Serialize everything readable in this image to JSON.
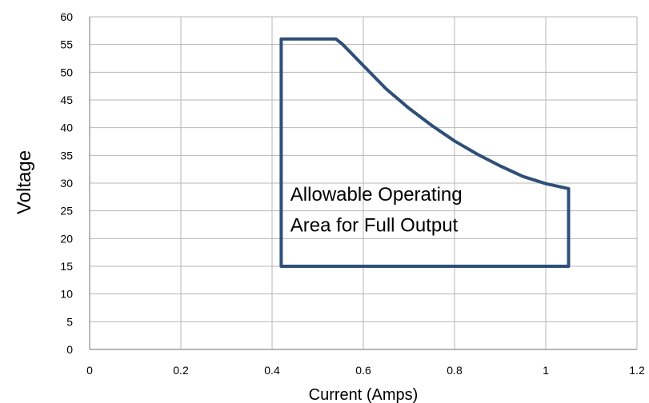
{
  "chart_data": {
    "type": "line",
    "title": "",
    "xlabel": "Current (Amps)",
    "ylabel": "Voltage",
    "xlim": [
      0,
      1.2
    ],
    "ylim": [
      0,
      60
    ],
    "x_ticks": [
      0,
      0.2,
      0.4,
      0.6,
      0.8,
      1,
      1.2
    ],
    "x_tick_labels": [
      "0",
      "0.2",
      "0.4",
      "0.6",
      "0.8",
      "1",
      "1.2"
    ],
    "y_ticks": [
      0,
      5,
      10,
      15,
      20,
      25,
      30,
      35,
      40,
      45,
      50,
      55,
      60
    ],
    "y_tick_labels": [
      "0",
      "5",
      "10",
      "15",
      "20",
      "25",
      "30",
      "35",
      "40",
      "45",
      "50",
      "55",
      "60"
    ],
    "grid": true,
    "series": [
      {
        "color": "#2e4f78",
        "points": [
          [
            0.42,
            15
          ],
          [
            0.42,
            56
          ],
          [
            0.54,
            56
          ],
          [
            0.555,
            55
          ],
          [
            0.6,
            51.2
          ],
          [
            0.65,
            47
          ],
          [
            0.7,
            43.5
          ],
          [
            0.75,
            40.4
          ],
          [
            0.8,
            37.6
          ],
          [
            0.85,
            35.2
          ],
          [
            0.9,
            33.1
          ],
          [
            0.95,
            31.2
          ],
          [
            1.0,
            29.9
          ],
          [
            1.05,
            29.0
          ],
          [
            1.05,
            15
          ],
          [
            0.42,
            15
          ]
        ]
      }
    ],
    "annotations": [
      {
        "text": "Allowable Operating",
        "x": 0.44,
        "y": 26.8
      },
      {
        "text": "Area for Full Output",
        "x": 0.44,
        "y": 21.3
      }
    ]
  }
}
